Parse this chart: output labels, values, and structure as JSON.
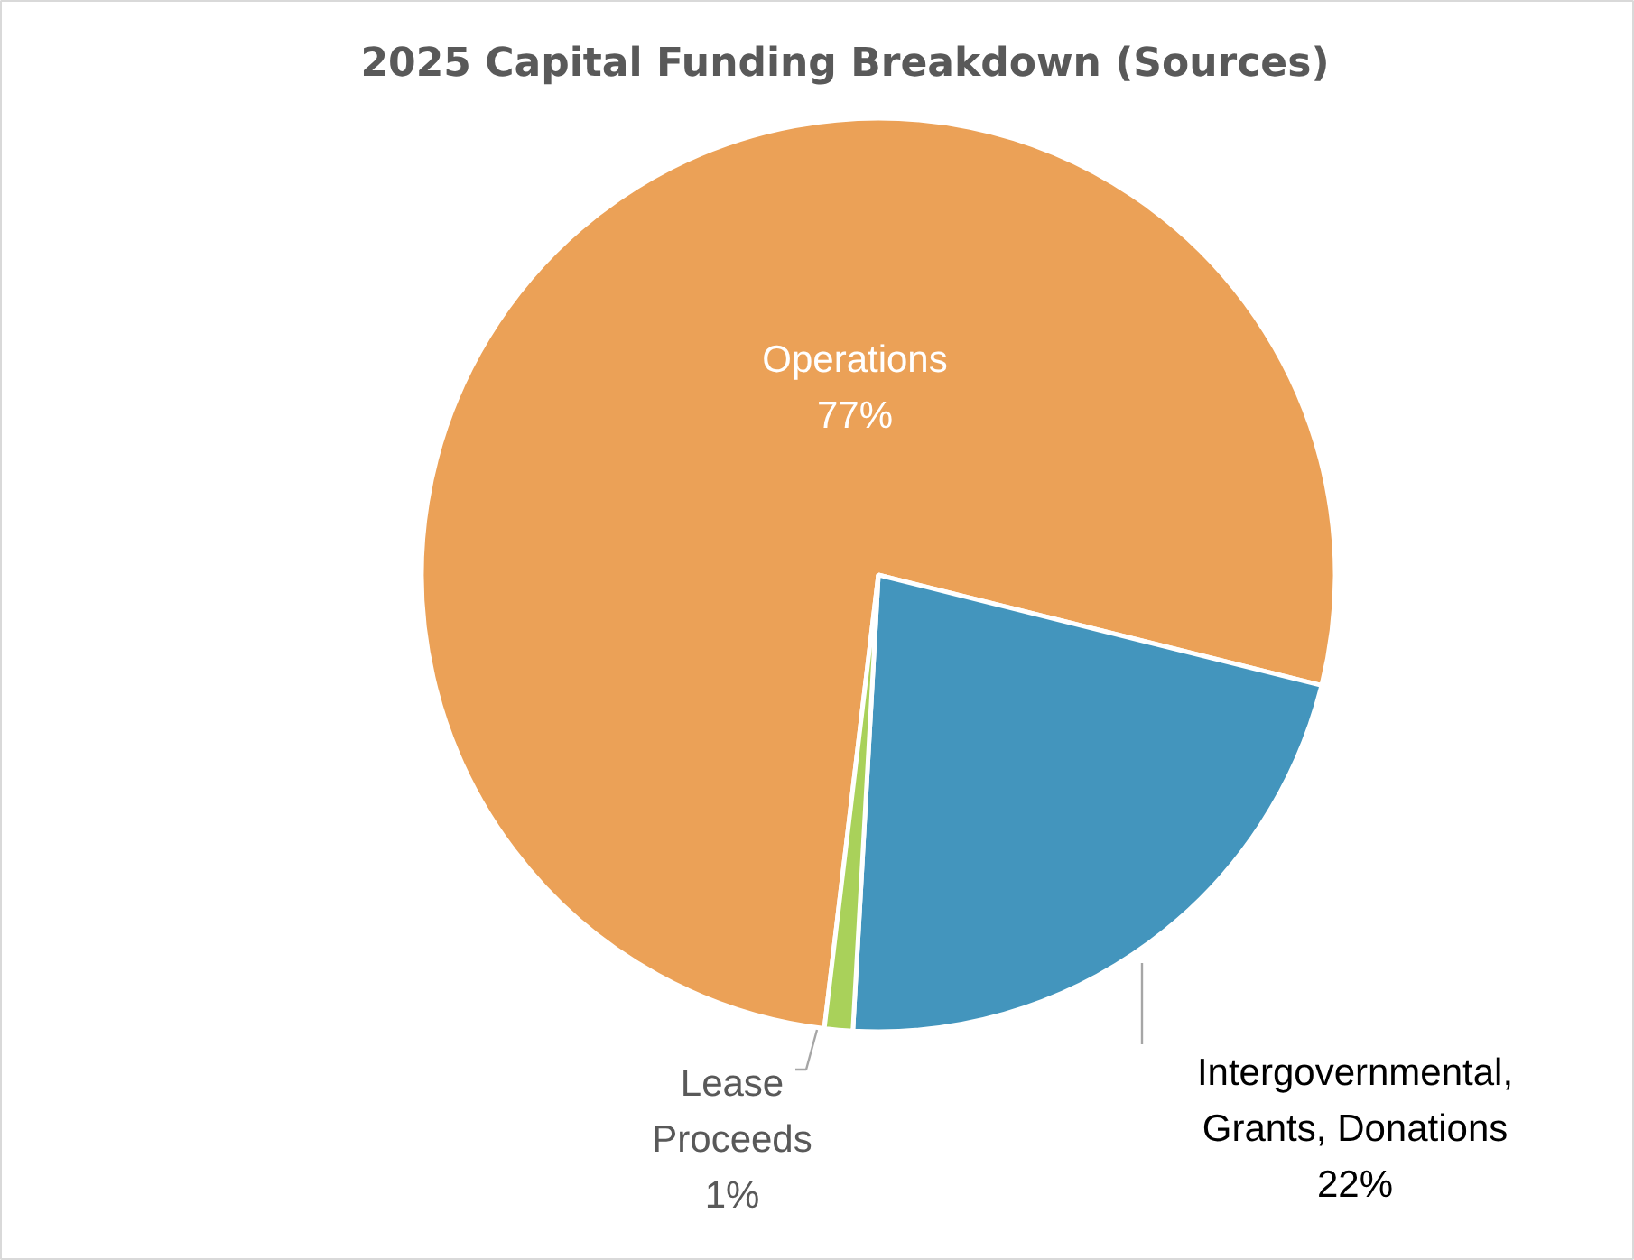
{
  "chart_data": {
    "type": "pie",
    "title": "2025 Capital Funding Breakdown (Sources)",
    "categories": [
      "Operations",
      "Intergovernmental, Grants, Donations",
      "Lease Proceeds"
    ],
    "values": [
      77,
      22,
      1
    ],
    "colors": [
      "#eba157",
      "#4395bd",
      "#a9d15a"
    ],
    "value_labels": [
      "77%",
      "22%",
      "1%"
    ]
  }
}
